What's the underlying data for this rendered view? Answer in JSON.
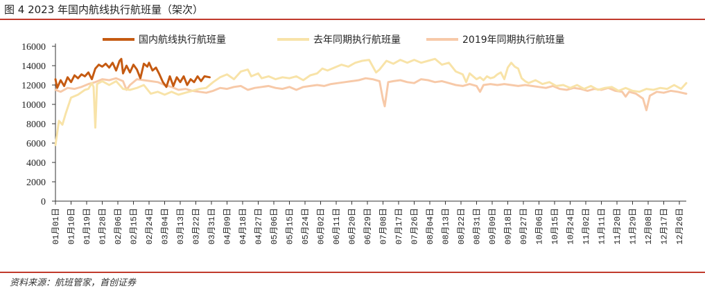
{
  "header": {
    "title": "图 4 2023 年国内航线执行航班量（架次）"
  },
  "footer": {
    "source": "资料来源：航班管家，首创证券"
  },
  "chart_data": {
    "type": "line",
    "ylim": [
      0,
      16000
    ],
    "yticks": [
      0,
      2000,
      4000,
      6000,
      8000,
      10000,
      12000,
      14000,
      16000
    ],
    "xticks": [
      "01月01日",
      "01月10日",
      "01月19日",
      "01月28日",
      "02月06日",
      "02月15日",
      "02月24日",
      "03月04日",
      "03月13日",
      "03月22日",
      "03月31日",
      "04月09日",
      "04月18日",
      "04月27日",
      "05月06日",
      "05月15日",
      "05月24日",
      "06月02日",
      "06月11日",
      "06月20日",
      "06月29日",
      "07月08日",
      "07月17日",
      "07月26日",
      "08月04日",
      "08月13日",
      "08月22日",
      "08月31日",
      "09月09日",
      "09月18日",
      "09月27日",
      "10月06日",
      "10月15日",
      "10月24日",
      "11月02日",
      "11月11日",
      "11月20日",
      "11月29日",
      "12月08日",
      "12月17日",
      "12月26日"
    ],
    "grid": false,
    "legend_position": "top",
    "series": [
      {
        "name": "国内航线执行航班量",
        "color": "#c55a11",
        "values": [
          [
            1,
            12600
          ],
          [
            2,
            11700
          ],
          [
            4,
            12500
          ],
          [
            6,
            11900
          ],
          [
            8,
            12800
          ],
          [
            10,
            12300
          ],
          [
            12,
            13000
          ],
          [
            14,
            12700
          ],
          [
            16,
            13100
          ],
          [
            18,
            12900
          ],
          [
            20,
            13300
          ],
          [
            22,
            12600
          ],
          [
            24,
            13700
          ],
          [
            26,
            14100
          ],
          [
            28,
            13900
          ],
          [
            30,
            14200
          ],
          [
            32,
            13800
          ],
          [
            34,
            14300
          ],
          [
            36,
            13500
          ],
          [
            38,
            14500
          ],
          [
            39,
            14700
          ],
          [
            40,
            13200
          ],
          [
            42,
            14000
          ],
          [
            44,
            13300
          ],
          [
            46,
            14100
          ],
          [
            48,
            13600
          ],
          [
            50,
            12700
          ],
          [
            52,
            14200
          ],
          [
            54,
            13900
          ],
          [
            55,
            14300
          ],
          [
            57,
            13500
          ],
          [
            59,
            13800
          ],
          [
            61,
            13100
          ],
          [
            63,
            12300
          ],
          [
            65,
            11800
          ],
          [
            67,
            12900
          ],
          [
            69,
            11900
          ],
          [
            71,
            12800
          ],
          [
            73,
            12300
          ],
          [
            75,
            12900
          ],
          [
            77,
            12000
          ],
          [
            79,
            12600
          ],
          [
            81,
            12300
          ],
          [
            83,
            12900
          ],
          [
            85,
            12400
          ],
          [
            87,
            12900
          ],
          [
            90,
            12800
          ]
        ]
      },
      {
        "name": "去年同期执行航班量",
        "color": "#f8e3a8",
        "values": [
          [
            1,
            5800
          ],
          [
            3,
            8300
          ],
          [
            5,
            7900
          ],
          [
            7,
            9100
          ],
          [
            10,
            10700
          ],
          [
            14,
            11000
          ],
          [
            18,
            11500
          ],
          [
            20,
            11600
          ],
          [
            22,
            12200
          ],
          [
            23,
            11800
          ],
          [
            24,
            7600
          ],
          [
            25,
            12100
          ],
          [
            28,
            12400
          ],
          [
            32,
            12000
          ],
          [
            36,
            12400
          ],
          [
            40,
            11600
          ],
          [
            44,
            11500
          ],
          [
            48,
            11700
          ],
          [
            52,
            12000
          ],
          [
            56,
            11100
          ],
          [
            60,
            11300
          ],
          [
            64,
            11000
          ],
          [
            68,
            11300
          ],
          [
            72,
            11000
          ],
          [
            76,
            11200
          ],
          [
            80,
            11400
          ],
          [
            84,
            11600
          ],
          [
            88,
            11700
          ],
          [
            92,
            12300
          ],
          [
            96,
            12800
          ],
          [
            100,
            13100
          ],
          [
            104,
            12600
          ],
          [
            108,
            13400
          ],
          [
            112,
            13600
          ],
          [
            114,
            12900
          ],
          [
            118,
            13200
          ],
          [
            120,
            12700
          ],
          [
            124,
            12900
          ],
          [
            128,
            12600
          ],
          [
            132,
            12800
          ],
          [
            136,
            12700
          ],
          [
            140,
            12900
          ],
          [
            144,
            12500
          ],
          [
            148,
            13000
          ],
          [
            152,
            13200
          ],
          [
            155,
            13700
          ],
          [
            158,
            13500
          ],
          [
            162,
            13800
          ],
          [
            166,
            14100
          ],
          [
            170,
            13900
          ],
          [
            174,
            14300
          ],
          [
            178,
            14500
          ],
          [
            182,
            14600
          ],
          [
            186,
            13300
          ],
          [
            188,
            13600
          ],
          [
            192,
            14500
          ],
          [
            196,
            14200
          ],
          [
            200,
            14600
          ],
          [
            204,
            14300
          ],
          [
            208,
            14600
          ],
          [
            212,
            14300
          ],
          [
            216,
            14500
          ],
          [
            220,
            14700
          ],
          [
            224,
            14100
          ],
          [
            228,
            14300
          ],
          [
            232,
            13400
          ],
          [
            236,
            13100
          ],
          [
            238,
            12300
          ],
          [
            240,
            13200
          ],
          [
            244,
            12600
          ],
          [
            246,
            12800
          ],
          [
            248,
            12500
          ],
          [
            250,
            12900
          ],
          [
            252,
            12700
          ],
          [
            254,
            12800
          ],
          [
            256,
            13100
          ],
          [
            258,
            13300
          ],
          [
            260,
            12600
          ],
          [
            262,
            13800
          ],
          [
            264,
            14300
          ],
          [
            266,
            13900
          ],
          [
            268,
            13700
          ],
          [
            270,
            12700
          ],
          [
            272,
            12400
          ],
          [
            274,
            12200
          ],
          [
            278,
            12500
          ],
          [
            282,
            12100
          ],
          [
            286,
            12300
          ],
          [
            290,
            11900
          ],
          [
            294,
            12000
          ],
          [
            298,
            11700
          ],
          [
            302,
            12000
          ],
          [
            306,
            11600
          ],
          [
            310,
            11900
          ],
          [
            314,
            11500
          ],
          [
            318,
            11700
          ],
          [
            322,
            11800
          ],
          [
            326,
            11400
          ],
          [
            330,
            11700
          ],
          [
            334,
            11400
          ],
          [
            338,
            11300
          ],
          [
            342,
            11600
          ],
          [
            346,
            11500
          ],
          [
            350,
            11700
          ],
          [
            354,
            11600
          ],
          [
            358,
            12000
          ],
          [
            362,
            11600
          ],
          [
            365,
            12200
          ]
        ]
      },
      {
        "name": "2019年同期执行航班量",
        "color": "#f7c9a8",
        "values": [
          [
            1,
            11500
          ],
          [
            4,
            11300
          ],
          [
            8,
            11700
          ],
          [
            12,
            11600
          ],
          [
            16,
            11800
          ],
          [
            20,
            12100
          ],
          [
            24,
            12300
          ],
          [
            28,
            12600
          ],
          [
            32,
            12500
          ],
          [
            36,
            12700
          ],
          [
            40,
            12400
          ],
          [
            42,
            11500
          ],
          [
            44,
            12000
          ],
          [
            48,
            12600
          ],
          [
            52,
            12500
          ],
          [
            56,
            12400
          ],
          [
            60,
            12300
          ],
          [
            64,
            12000
          ],
          [
            68,
            11800
          ],
          [
            72,
            11500
          ],
          [
            76,
            11600
          ],
          [
            80,
            11400
          ],
          [
            84,
            11300
          ],
          [
            88,
            11200
          ],
          [
            92,
            11400
          ],
          [
            96,
            11700
          ],
          [
            100,
            11600
          ],
          [
            104,
            11800
          ],
          [
            108,
            11900
          ],
          [
            112,
            11500
          ],
          [
            116,
            11700
          ],
          [
            120,
            11800
          ],
          [
            124,
            11900
          ],
          [
            128,
            11700
          ],
          [
            132,
            11600
          ],
          [
            136,
            11800
          ],
          [
            140,
            11500
          ],
          [
            144,
            11800
          ],
          [
            148,
            11900
          ],
          [
            152,
            12000
          ],
          [
            156,
            11900
          ],
          [
            160,
            12100
          ],
          [
            164,
            12200
          ],
          [
            168,
            12300
          ],
          [
            172,
            12400
          ],
          [
            176,
            12500
          ],
          [
            180,
            12700
          ],
          [
            184,
            12600
          ],
          [
            188,
            12400
          ],
          [
            190,
            10500
          ],
          [
            191,
            9800
          ],
          [
            193,
            12300
          ],
          [
            196,
            12400
          ],
          [
            200,
            12500
          ],
          [
            204,
            12300
          ],
          [
            208,
            12200
          ],
          [
            212,
            12600
          ],
          [
            216,
            12500
          ],
          [
            220,
            12300
          ],
          [
            224,
            12400
          ],
          [
            228,
            12200
          ],
          [
            232,
            12000
          ],
          [
            236,
            11900
          ],
          [
            240,
            12100
          ],
          [
            244,
            11900
          ],
          [
            246,
            11300
          ],
          [
            248,
            12000
          ],
          [
            252,
            12100
          ],
          [
            256,
            12000
          ],
          [
            260,
            12100
          ],
          [
            264,
            12000
          ],
          [
            268,
            11900
          ],
          [
            272,
            12000
          ],
          [
            276,
            11900
          ],
          [
            280,
            11800
          ],
          [
            284,
            11700
          ],
          [
            288,
            11900
          ],
          [
            292,
            11600
          ],
          [
            296,
            11500
          ],
          [
            300,
            11700
          ],
          [
            304,
            11600
          ],
          [
            308,
            11400
          ],
          [
            312,
            11600
          ],
          [
            316,
            11500
          ],
          [
            320,
            11700
          ],
          [
            324,
            11400
          ],
          [
            328,
            11300
          ],
          [
            330,
            10800
          ],
          [
            332,
            11300
          ],
          [
            336,
            11100
          ],
          [
            340,
            10600
          ],
          [
            342,
            9400
          ],
          [
            344,
            10900
          ],
          [
            348,
            11300
          ],
          [
            352,
            11200
          ],
          [
            356,
            11400
          ],
          [
            360,
            11300
          ],
          [
            365,
            11100
          ]
        ]
      }
    ]
  }
}
